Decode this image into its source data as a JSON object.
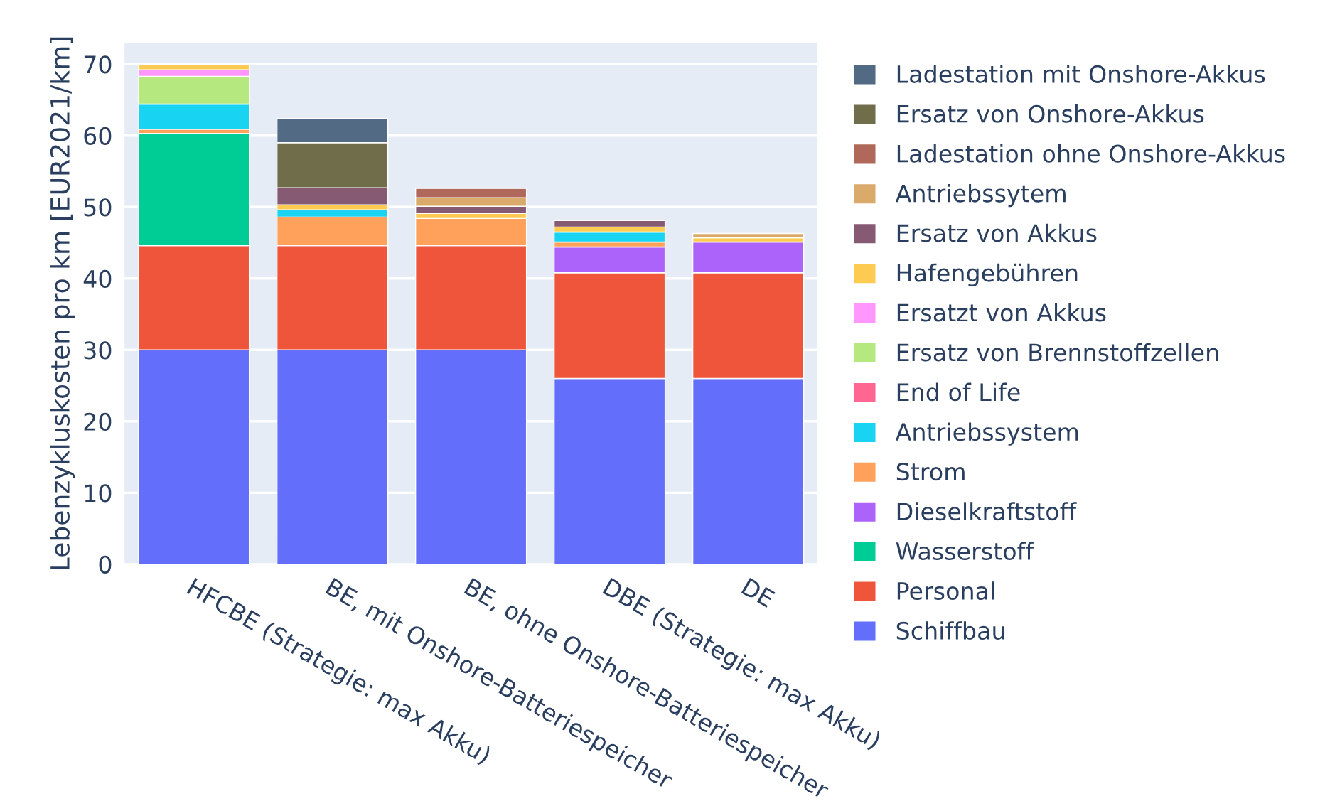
{
  "chart_data": {
    "type": "bar",
    "stacked": true,
    "ylabel": "Lebenzykluskosten pro km [EUR2021/km]",
    "categories": [
      "HFCBE (Strategie: max Akku)",
      "BE, mit Onshore-Batteriespeicher",
      "BE, ohne Onshore-Batteriespeicher",
      "DBE (Strategie: max Akku)",
      "DE"
    ],
    "ylim": [
      0,
      73
    ],
    "yticks": [
      0,
      10,
      20,
      30,
      40,
      50,
      60,
      70
    ],
    "grid": "y",
    "legend": "right",
    "series": [
      {
        "name": "Schiffbau",
        "color": "#636efa",
        "values": [
          30,
          30,
          30,
          26,
          26
        ]
      },
      {
        "name": "Personal",
        "color": "#ef553b",
        "values": [
          14.6,
          14.6,
          14.6,
          14.8,
          14.8
        ]
      },
      {
        "name": "Wasserstoff",
        "color": "#00cc96",
        "values": [
          15.7,
          null,
          null,
          null,
          null
        ]
      },
      {
        "name": "Dieselkraftstoff",
        "color": "#ab63fa",
        "values": [
          null,
          null,
          null,
          3.6,
          4.3
        ]
      },
      {
        "name": "Strom",
        "color": "#ffa15a",
        "values": [
          0.6,
          4.0,
          3.8,
          0.7,
          null
        ]
      },
      {
        "name": "Antriebssystem",
        "color": "#19d3f3",
        "values": [
          3.5,
          1.0,
          null,
          1.4,
          null
        ]
      },
      {
        "name": "End of Life",
        "color": "#ff6692",
        "values": [
          null,
          null,
          null,
          null,
          null
        ]
      },
      {
        "name": "Ersatz von Brennstoffzellen",
        "color": "#b6e880",
        "values": [
          3.9,
          null,
          null,
          null,
          null
        ]
      },
      {
        "name": "Ersatzt von Akkus",
        "color": "#ff97ff",
        "values": [
          0.9,
          null,
          null,
          null,
          null
        ]
      },
      {
        "name": "Hafengebühren",
        "color": "#fecb52",
        "values": [
          0.7,
          0.7,
          0.7,
          0.7,
          0.6
        ]
      },
      {
        "name": "Ersatz von Akkus",
        "color": "#865a72",
        "values": [
          null,
          2.4,
          1.0,
          0.9,
          null
        ]
      },
      {
        "name": "Antriebssytem",
        "color": "#d9aa6a",
        "values": [
          null,
          null,
          1.2,
          null,
          0.6
        ]
      },
      {
        "name": "Ladestation ohne Onshore-Akkus",
        "color": "#b0685a",
        "values": [
          null,
          null,
          1.3,
          null,
          null
        ]
      },
      {
        "name": "Ersatz von Onshore-Akkus",
        "color": "#706d4b",
        "values": [
          null,
          6.3,
          null,
          null,
          null
        ]
      },
      {
        "name": "Ladestation mit Onshore-Akkus",
        "color": "#536a85",
        "values": [
          null,
          3.4,
          null,
          null,
          null
        ]
      }
    ]
  }
}
